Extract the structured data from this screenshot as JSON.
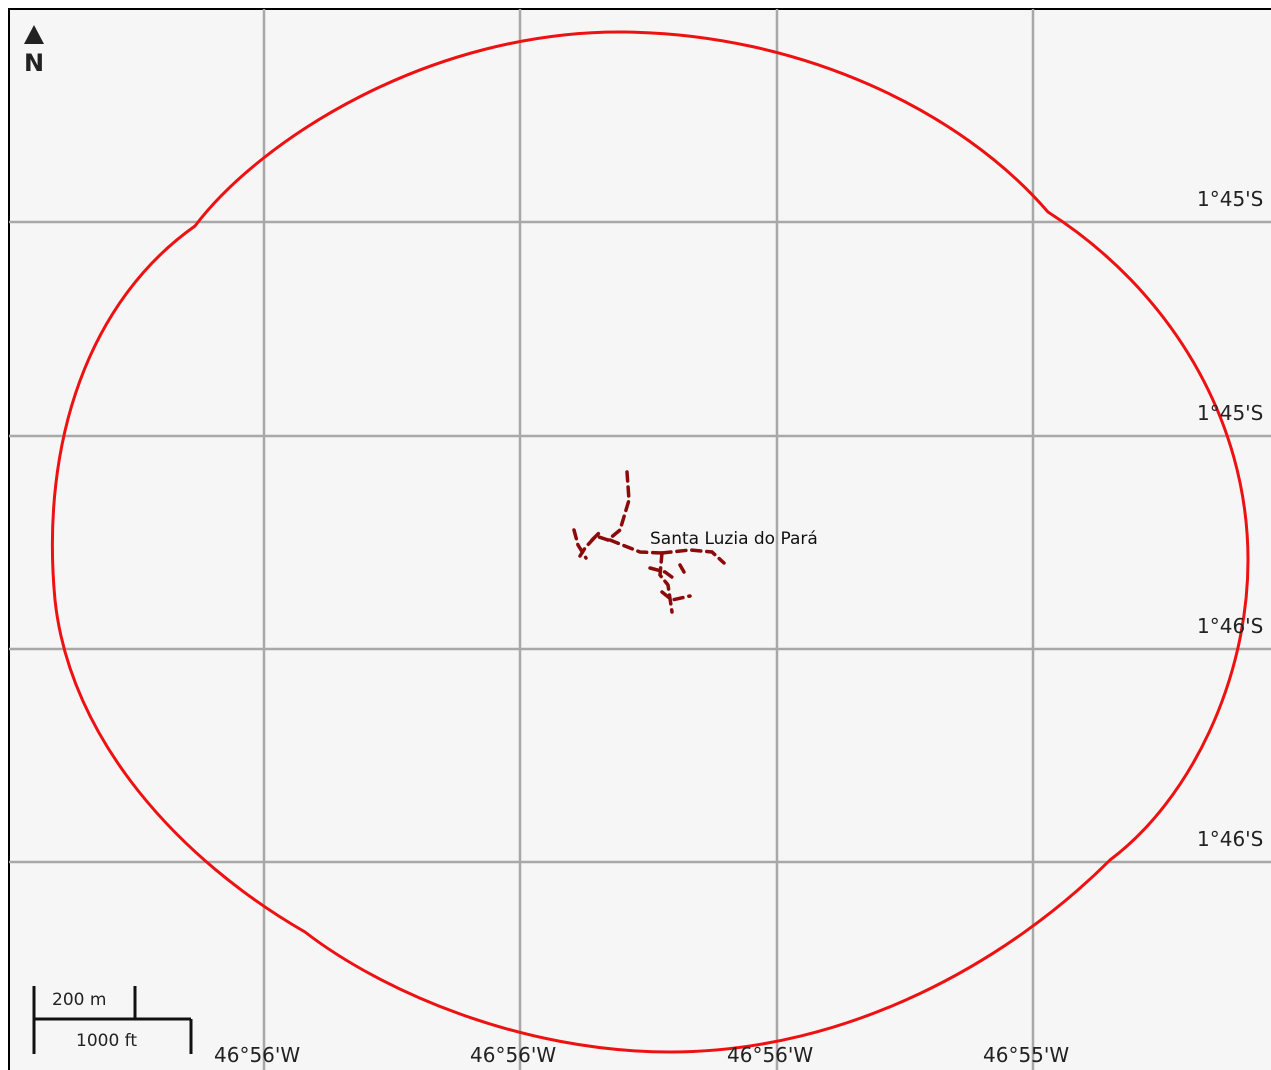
{
  "map": {
    "place_label": "Santa Luzia do Pará",
    "north_arrow": {
      "icon": "north-arrow-icon",
      "letter": "N"
    },
    "latitude_labels": [
      "1°45'S",
      "1°45'S",
      "1°46'S",
      "1°46'S"
    ],
    "longitude_labels": [
      "46°56'W",
      "46°56'W",
      "46°56'W",
      "46°55'W"
    ],
    "scale_bar": {
      "metric_label": "200 m",
      "imperial_label": "1000 ft"
    },
    "colors": {
      "background": "#f6f6f6",
      "frame": "#000000",
      "grid": "#a8a8a8",
      "boundary": "#ee1111",
      "roads": "#8b0a0a"
    }
  }
}
